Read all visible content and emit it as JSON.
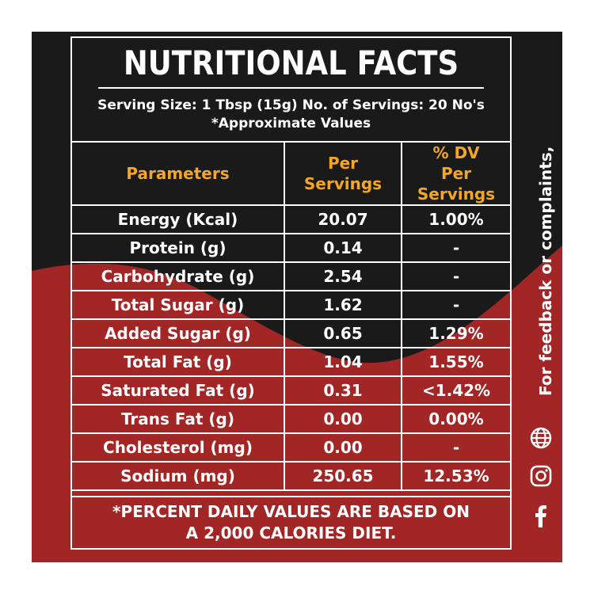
{
  "title": "NUTRITIONAL FACTS",
  "serving": {
    "line1": "Serving Size: 1 Tbsp (15g) No. of Servings: 20 No's",
    "line2": "*Approximate Values"
  },
  "table": {
    "headers": {
      "param": "Parameters",
      "per_line1": "Per",
      "per_line2": "Servings",
      "dv_line1": "% DV",
      "dv_line2": "Per Servings"
    },
    "rows": [
      {
        "param": "Energy (Kcal)",
        "per": "20.07",
        "dv": "1.00%"
      },
      {
        "param": "Protein (g)",
        "per": "0.14",
        "dv": "-"
      },
      {
        "param": "Carbohydrate (g)",
        "per": "2.54",
        "dv": "-"
      },
      {
        "param": "Total Sugar (g)",
        "per": "1.62",
        "dv": "-"
      },
      {
        "param": "Added Sugar (g)",
        "per": "0.65",
        "dv": "1.29%"
      },
      {
        "param": "Total Fat (g)",
        "per": "1.04",
        "dv": "1.55%"
      },
      {
        "param": "Saturated Fat (g)",
        "per": "0.31",
        "dv": "<1.42%"
      },
      {
        "param": "Trans Fat (g)",
        "per": "0.00",
        "dv": "0.00%"
      },
      {
        "param": "Cholesterol (mg)",
        "per": "0.00",
        "dv": "-"
      },
      {
        "param": "Sodium (mg)",
        "per": "250.65",
        "dv": "12.53%"
      }
    ]
  },
  "footnote": {
    "line1": "*PERCENT DAILY VALUES ARE BASED ON",
    "line2": "A 2,000 CALORIES DIET."
  },
  "side_text": "For feedback or complaints,",
  "icons": [
    "globe-icon",
    "instagram-icon",
    "facebook-icon"
  ],
  "colors": {
    "dark": "#1a1a1a",
    "red": "#a32626",
    "header_orange": "#f5a623",
    "text": "#ffffff"
  }
}
